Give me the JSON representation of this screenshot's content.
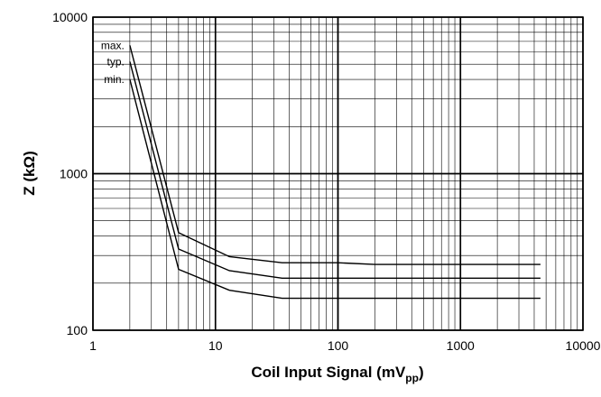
{
  "chart_data": {
    "type": "line",
    "title": "",
    "xlabel": "Coil Input Signal (mV",
    "xlabel_sub": "pp",
    "xlabel_suffix": ")",
    "ylabel": "Z (kΩ)",
    "x_scale": "log",
    "y_scale": "log",
    "xlim": [
      1,
      10000
    ],
    "ylim": [
      100,
      10000
    ],
    "grid": true,
    "x_ticks": [
      1,
      10,
      100,
      1000,
      10000
    ],
    "x_tick_labels": [
      "1",
      "10",
      "100",
      "1000",
      "10000"
    ],
    "y_ticks": [
      100,
      1000,
      10000
    ],
    "y_tick_labels": [
      "100",
      "1000",
      "10000"
    ],
    "series": [
      {
        "name": "max.",
        "color": "#000000",
        "x": [
          2,
          5,
          13,
          35,
          100,
          200,
          1000,
          4500
        ],
        "y": [
          6600,
          420,
          295,
          270,
          270,
          263,
          263,
          263
        ]
      },
      {
        "name": "typ.",
        "color": "#000000",
        "x": [
          2,
          5,
          13,
          35,
          100,
          1000,
          4500
        ],
        "y": [
          5200,
          330,
          240,
          215,
          215,
          215,
          215
        ]
      },
      {
        "name": "min.",
        "color": "#000000",
        "x": [
          2,
          5,
          13,
          35,
          100,
          1000,
          4500
        ],
        "y": [
          4000,
          245,
          180,
          160,
          160,
          160,
          160
        ]
      }
    ]
  }
}
